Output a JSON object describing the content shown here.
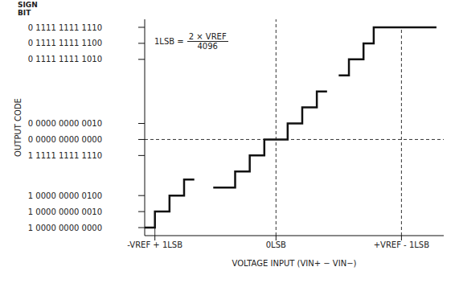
{
  "chart_data": {
    "type": "line",
    "line_style": "step",
    "color": "#111111",
    "grid": false,
    "y_label": "OUTPUT CODE",
    "x_label": "VOLTAGE INPUT (VIN+ − VIN−)",
    "annotations": [
      {
        "text": "SIGN BIT"
      },
      {
        "text": "1LSB =",
        "numerator": "2 × VREF",
        "denominator": "4096"
      }
    ],
    "x": [
      -9,
      -8.3,
      -7.3,
      -6.3,
      -5.6,
      -5.0,
      -4.3,
      -2.8,
      -1.8,
      -0.8,
      0.8,
      1.8,
      2.8,
      3.5,
      4.0,
      4.3,
      5.0,
      6.0,
      6.7,
      11
    ],
    "values": [
      0,
      2,
      4,
      6,
      6,
      null,
      5,
      7,
      9,
      11,
      13,
      15,
      17,
      17,
      null,
      19,
      21,
      23,
      25,
      25
    ],
    "xlim": [
      -9,
      11.5
    ],
    "xticks": [
      {
        "value": -8.3,
        "label": "-VREF + 1LSB"
      },
      {
        "value": 0,
        "label": "0LSB"
      },
      {
        "value": 8.6,
        "label": "+VREF - 1LSB"
      }
    ],
    "ylim": [
      -1,
      26
    ],
    "yticks": [
      {
        "value": 0,
        "label": "1 0000 0000 0000"
      },
      {
        "value": 2,
        "label": "1 0000 0000 0010"
      },
      {
        "value": 4,
        "label": "1 0000 0000 0100"
      },
      {
        "value": 9,
        "label": "1 1111 1111 1110"
      },
      {
        "value": 11,
        "label": "0 0000 0000 0000"
      },
      {
        "value": 13,
        "label": "0 0000 0000 0010"
      },
      {
        "value": 21,
        "label": "0 1111 1111 1010"
      },
      {
        "value": 23,
        "label": "0 1111 1111 1100"
      },
      {
        "value": 25,
        "label": "0 1111 1111 1110"
      }
    ]
  }
}
